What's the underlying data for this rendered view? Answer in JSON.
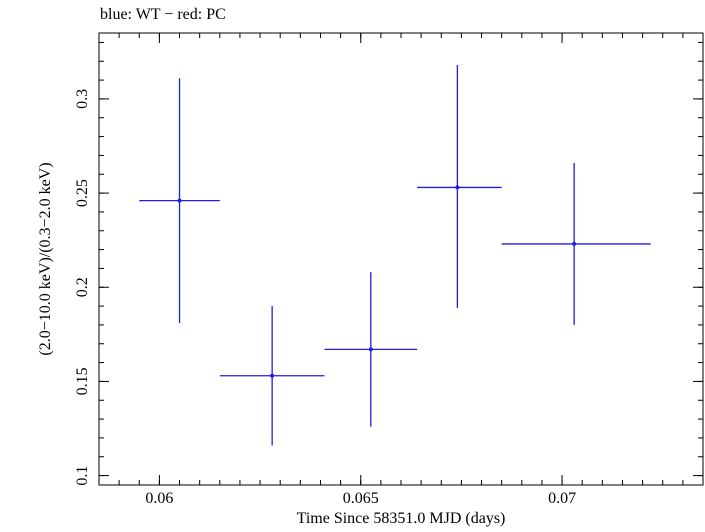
{
  "chart_data": {
    "type": "scatter",
    "title": "blue: WT − red: PC",
    "xlabel": "Time Since 58351.0 MJD (days)",
    "ylabel": "(2.0−10.0 keV)/(0.3−2.0 keV)",
    "xlim": [
      0.0585,
      0.0735
    ],
    "ylim": [
      0.095,
      0.335
    ],
    "xticks": [
      0.06,
      0.065,
      0.07
    ],
    "xtick_labels": [
      "0.06",
      "0.065",
      "0.07"
    ],
    "yticks": [
      0.1,
      0.15,
      0.2,
      0.25,
      0.3
    ],
    "ytick_labels": [
      "0.1",
      "0.15",
      "0.2",
      "0.25",
      "0.3"
    ],
    "grid": false,
    "series": [
      {
        "name": "WT",
        "color": "#1f1fe0",
        "points": [
          {
            "x": 0.0605,
            "y": 0.246,
            "xlo": 0.0595,
            "xhi": 0.0615,
            "ylo": 0.181,
            "yhi": 0.311
          },
          {
            "x": 0.0628,
            "y": 0.153,
            "xlo": 0.0615,
            "xhi": 0.0641,
            "ylo": 0.116,
            "yhi": 0.19
          },
          {
            "x": 0.06525,
            "y": 0.167,
            "xlo": 0.0641,
            "xhi": 0.0664,
            "ylo": 0.126,
            "yhi": 0.208
          },
          {
            "x": 0.0674,
            "y": 0.253,
            "xlo": 0.0664,
            "xhi": 0.0685,
            "ylo": 0.189,
            "yhi": 0.318
          },
          {
            "x": 0.0703,
            "y": 0.223,
            "xlo": 0.0685,
            "xhi": 0.0722,
            "ylo": 0.18,
            "yhi": 0.266
          }
        ]
      }
    ]
  }
}
